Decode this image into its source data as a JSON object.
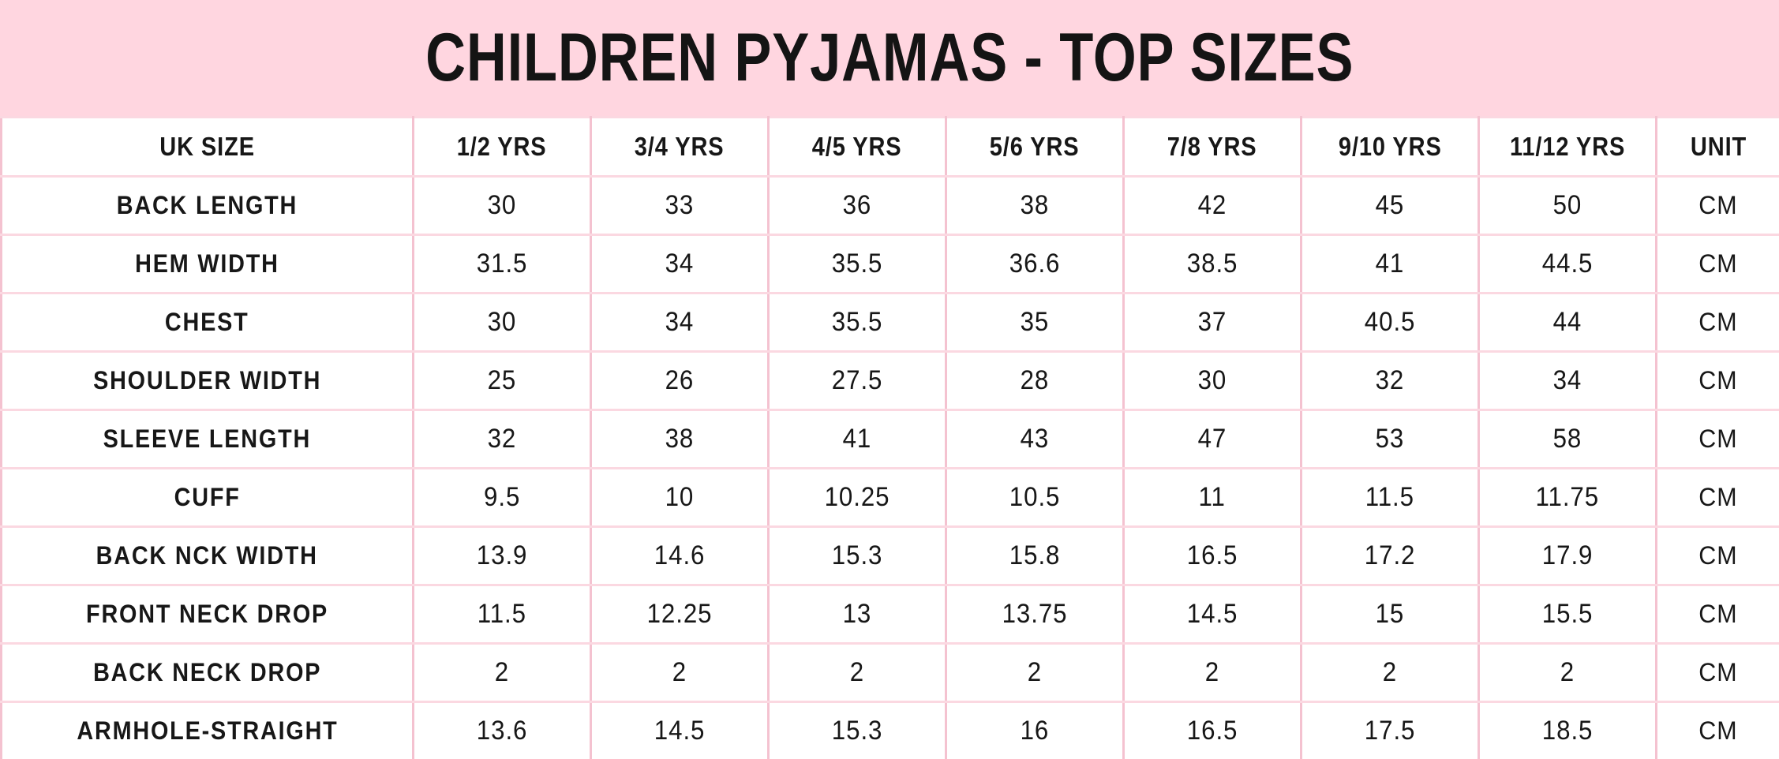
{
  "title_banner": {
    "title": "CHILDREN PYJAMAS - TOP SIZES"
  },
  "colors": {
    "banner_background": "#ffd6e0",
    "vertical_grid": "#f4c2d0",
    "horizontal_grid": "#fbd8e1",
    "text": "#171717",
    "cell_background": "#ffffff"
  },
  "chart_data": {
    "type": "table",
    "title": "CHILDREN PYJAMAS - TOP SIZES",
    "columns": [
      "UK SIZE",
      "1/2 YRS",
      "3/4 YRS",
      "4/5 YRS",
      "5/6 YRS",
      "7/8 YRS",
      "9/10 YRS",
      "11/12 YRS",
      "UNIT"
    ],
    "rows": [
      {
        "label": "BACK LENGTH",
        "values": [
          "30",
          "33",
          "36",
          "38",
          "42",
          "45",
          "50"
        ],
        "unit": "CM"
      },
      {
        "label": "HEM WIDTH",
        "values": [
          "31.5",
          "34",
          "35.5",
          "36.6",
          "38.5",
          "41",
          "44.5"
        ],
        "unit": "CM"
      },
      {
        "label": "CHEST",
        "values": [
          "30",
          "34",
          "35.5",
          "35",
          "37",
          "40.5",
          "44"
        ],
        "unit": "CM"
      },
      {
        "label": "SHOULDER WIDTH",
        "values": [
          "25",
          "26",
          "27.5",
          "28",
          "30",
          "32",
          "34"
        ],
        "unit": "CM"
      },
      {
        "label": "SLEEVE LENGTH",
        "values": [
          "32",
          "38",
          "41",
          "43",
          "47",
          "53",
          "58"
        ],
        "unit": "CM"
      },
      {
        "label": "CUFF",
        "values": [
          "9.5",
          "10",
          "10.25",
          "10.5",
          "11",
          "11.5",
          "11.75"
        ],
        "unit": "CM"
      },
      {
        "label": "BACK NCK WIDTH",
        "values": [
          "13.9",
          "14.6",
          "15.3",
          "15.8",
          "16.5",
          "17.2",
          "17.9"
        ],
        "unit": "CM"
      },
      {
        "label": "FRONT NECK DROP",
        "values": [
          "11.5",
          "12.25",
          "13",
          "13.75",
          "14.5",
          "15",
          "15.5"
        ],
        "unit": "CM"
      },
      {
        "label": "BACK NECK DROP",
        "values": [
          "2",
          "2",
          "2",
          "2",
          "2",
          "2",
          "2"
        ],
        "unit": "CM"
      },
      {
        "label": "ARMHOLE-STRAIGHT",
        "values": [
          "13.6",
          "14.5",
          "15.3",
          "16",
          "16.5",
          "17.5",
          "18.5"
        ],
        "unit": "CM"
      }
    ]
  }
}
